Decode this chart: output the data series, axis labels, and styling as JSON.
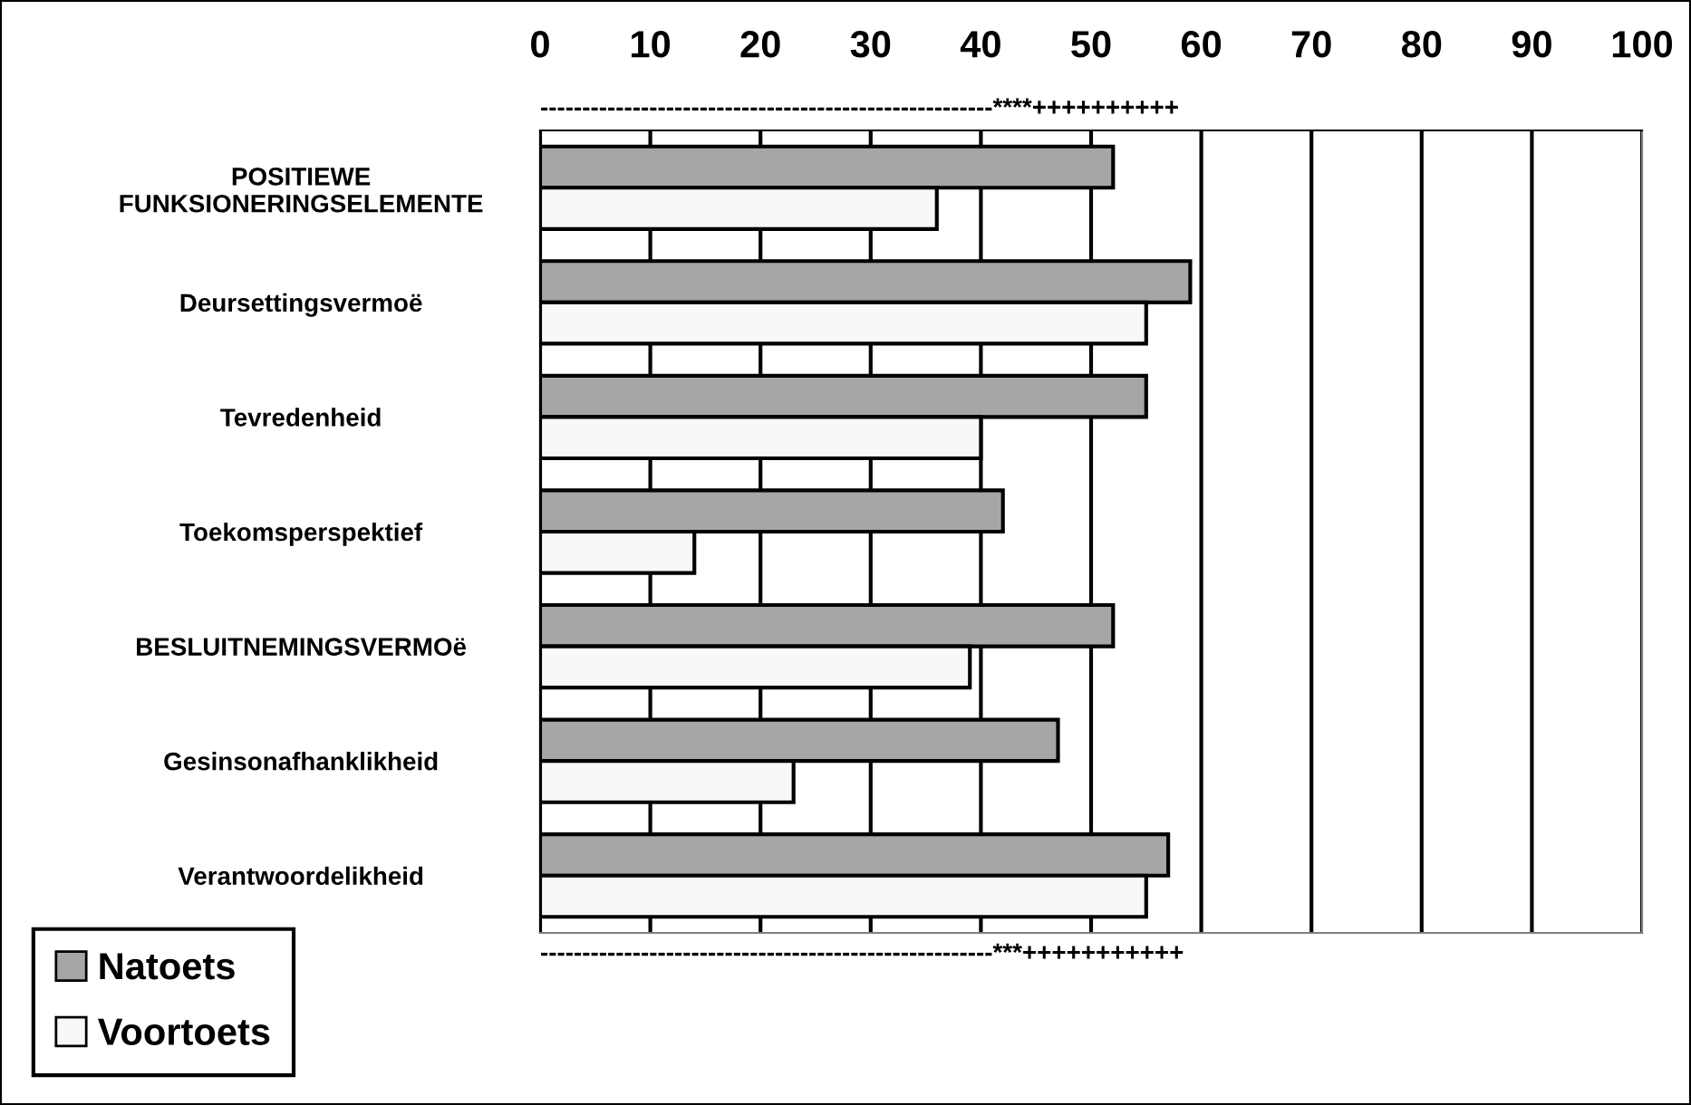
{
  "chart_data": {
    "type": "bar",
    "orientation": "horizontal",
    "categories": [
      "POSITIEWE\nFUNKSIONERINGSELEMENTE",
      "Deursettingsvermoë",
      "Tevredenheid",
      "Toekomsperspektief",
      "BESLUITNEMINGSVERMOë",
      "Gesinsonafhanklikheid",
      "Verantwoordelikheid"
    ],
    "series": [
      {
        "name": "Natoets",
        "color": "#a6a6a6",
        "values": [
          52,
          59,
          55,
          42,
          52,
          47,
          57
        ]
      },
      {
        "name": "Voortoets",
        "color": "#f8f8f8",
        "values": [
          36,
          55,
          40,
          14,
          39,
          23,
          55
        ]
      }
    ],
    "xlim": [
      0,
      100
    ],
    "xticks": [
      0,
      10,
      20,
      30,
      40,
      50,
      60,
      70,
      80,
      90,
      100
    ],
    "grid": "x",
    "legend": "bottom left",
    "annotations": [
      "------------------------------------------------------****++++++++++",
      "------------------------------------------------------***+++++++++++"
    ]
  }
}
